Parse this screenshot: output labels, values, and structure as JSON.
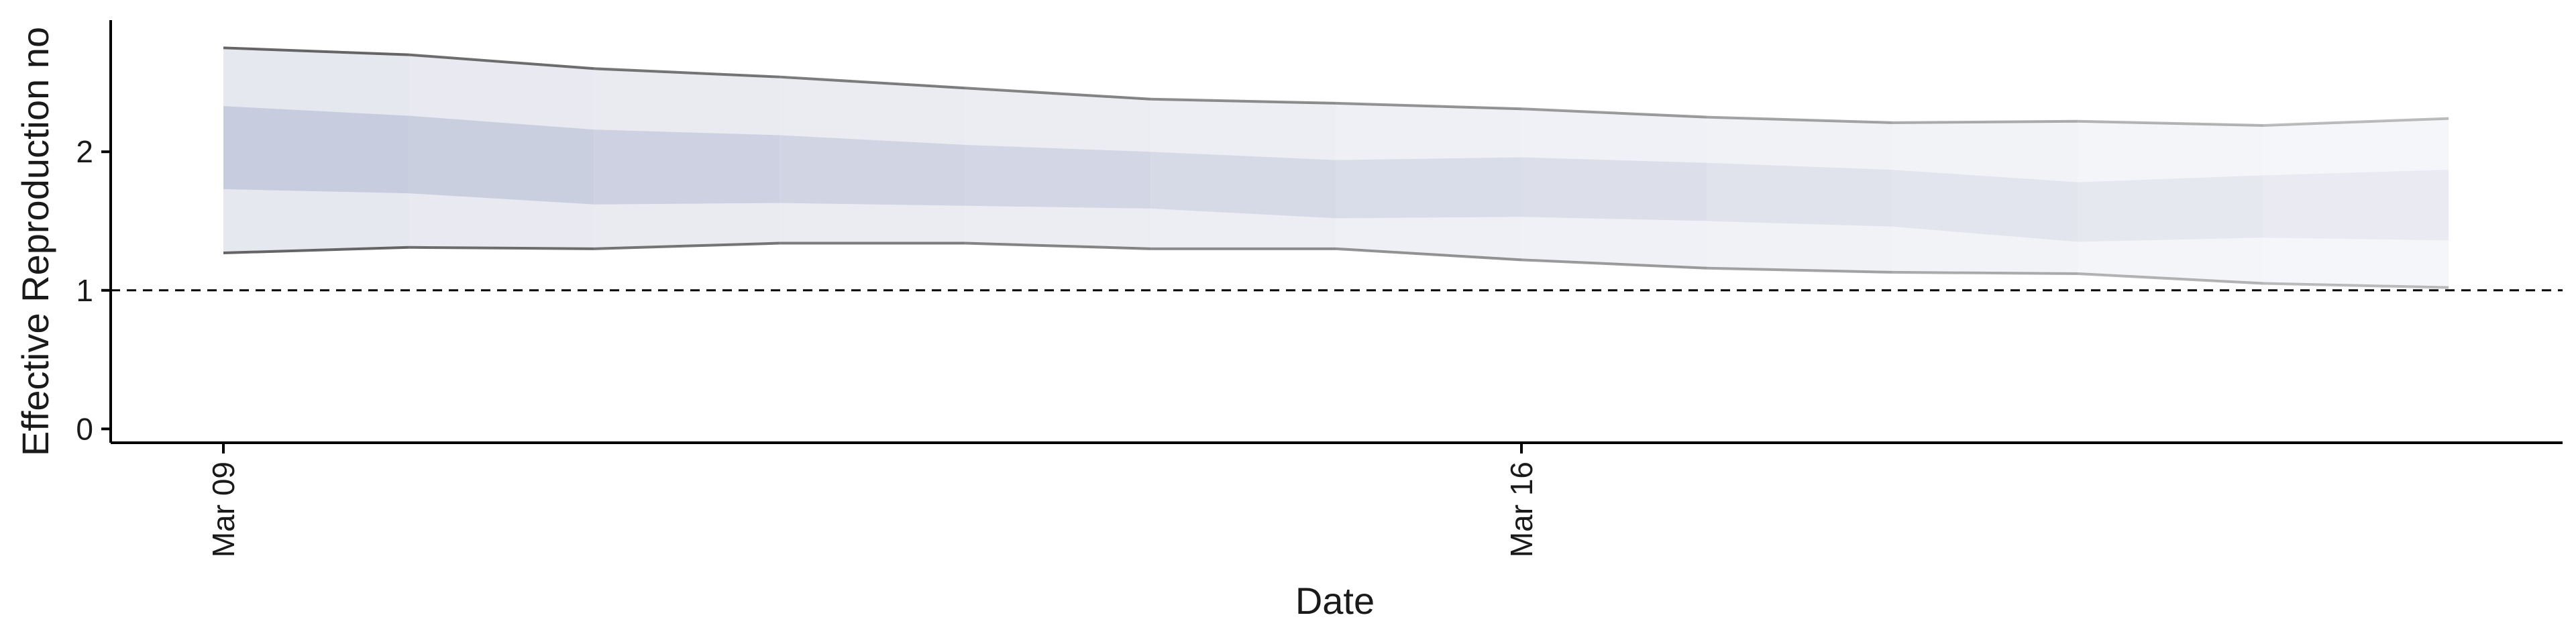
{
  "chart_data": {
    "type": "area",
    "title": "",
    "xlabel": "Date",
    "ylabel": "Effective Reproduction no",
    "x": [
      "Mar 09",
      "Mar 10",
      "Mar 11",
      "Mar 12",
      "Mar 13",
      "Mar 14",
      "Mar 15",
      "Mar 16",
      "Mar 17",
      "Mar 18",
      "Mar 19",
      "Mar 20",
      "Mar 21"
    ],
    "x_ticks": [
      "Mar 09",
      "Mar 16"
    ],
    "y_ticks": [
      "0",
      "1",
      "2"
    ],
    "ylim": [
      -0.1,
      2.95
    ],
    "reference_line": {
      "y": 1,
      "style": "dashed"
    },
    "series": [
      {
        "role": "outer-upper",
        "values": [
          2.75,
          2.7,
          2.6,
          2.54,
          2.46,
          2.38,
          2.35,
          2.31,
          2.25,
          2.21,
          2.22,
          2.19,
          2.24
        ]
      },
      {
        "role": "inner-upper",
        "values": [
          2.33,
          2.26,
          2.16,
          2.12,
          2.05,
          2.0,
          1.94,
          1.96,
          1.92,
          1.87,
          1.78,
          1.83,
          1.87
        ]
      },
      {
        "role": "inner-lower",
        "values": [
          1.73,
          1.7,
          1.62,
          1.63,
          1.61,
          1.59,
          1.52,
          1.53,
          1.5,
          1.46,
          1.35,
          1.38,
          1.36
        ]
      },
      {
        "role": "outer-lower",
        "values": [
          1.27,
          1.31,
          1.3,
          1.34,
          1.34,
          1.3,
          1.3,
          1.22,
          1.16,
          1.13,
          1.12,
          1.05,
          1.02
        ]
      }
    ],
    "grid": false,
    "colors": {
      "inner_band": "#c4c9dc",
      "outer_band": "#e5e7ef",
      "outline": "#555555"
    }
  }
}
